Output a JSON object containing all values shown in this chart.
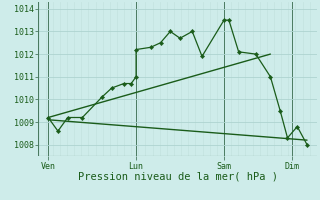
{
  "bg_color": "#ceecea",
  "grid_color_major": "#aed4d0",
  "grid_color_minor": "#c0e0dc",
  "line_color": "#1a5c1a",
  "marker_color": "#1a5c1a",
  "xlabel": "Pression niveau de la mer( hPa )",
  "ylim": [
    1007.5,
    1014.3
  ],
  "yticks": [
    1008,
    1009,
    1010,
    1011,
    1012,
    1013,
    1014
  ],
  "xtick_labels": [
    "Ven",
    "Lun",
    "Sam",
    "Dim"
  ],
  "xtick_positions": [
    10,
    46,
    82,
    110
  ],
  "series1_x": [
    10,
    14,
    18,
    24,
    32,
    36,
    41,
    44,
    46,
    46,
    52,
    56,
    60,
    64,
    69,
    73,
    82,
    84,
    88,
    95,
    101,
    105,
    108,
    112,
    116
  ],
  "series1_y": [
    1009.2,
    1008.6,
    1009.2,
    1009.2,
    1010.1,
    1010.5,
    1010.7,
    1010.7,
    1011.0,
    1012.2,
    1012.3,
    1012.5,
    1013.0,
    1012.7,
    1013.0,
    1011.9,
    1013.5,
    1013.5,
    1012.1,
    1012.0,
    1011.0,
    1009.5,
    1008.3,
    1008.8,
    1008.0
  ],
  "series2_x": [
    10,
    101
  ],
  "series2_y": [
    1009.2,
    1012.0
  ],
  "series3_x": [
    10,
    116
  ],
  "series3_y": [
    1009.1,
    1008.2
  ],
  "vline_x": [
    10,
    46,
    82,
    110
  ],
  "xmin": 6,
  "xmax": 120,
  "xlabel_fontsize": 7.5,
  "tick_fontsize": 6.0,
  "spine_color": "#3a6a50",
  "axis_color": "#4a7a60"
}
